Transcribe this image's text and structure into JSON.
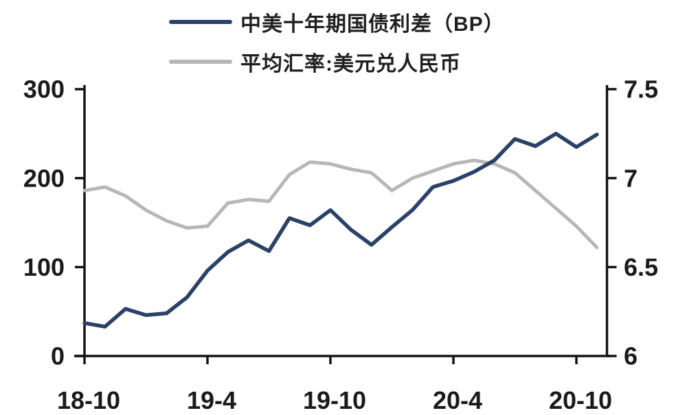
{
  "chart_data": {
    "type": "line",
    "title": "",
    "x_categories": [
      "18-10",
      "18-11",
      "18-12",
      "19-1",
      "19-2",
      "19-3",
      "19-4",
      "19-5",
      "19-6",
      "19-7",
      "19-8",
      "19-9",
      "19-10",
      "19-11",
      "19-12",
      "20-1",
      "20-2",
      "20-3",
      "20-4",
      "20-5",
      "20-6",
      "20-7",
      "20-8",
      "20-9",
      "20-10",
      "20-11"
    ],
    "x_tick_labels": [
      "18-10",
      "19-4",
      "19-10",
      "20-4",
      "20-10"
    ],
    "x_tick_indices": [
      0,
      6,
      12,
      18,
      24
    ],
    "series": [
      {
        "name": "中美十年期国债利差（BP）",
        "axis": "left",
        "color": "#2a4168",
        "values": [
          37,
          33,
          53,
          46,
          48,
          66,
          96,
          117,
          130,
          118,
          155,
          147,
          164,
          142,
          125,
          145,
          164,
          190,
          197,
          207,
          220,
          244,
          236,
          250,
          235,
          249
        ]
      },
      {
        "name": "平均汇率:美元兑人民币",
        "axis": "right",
        "color": "#b7b7b7",
        "values": [
          6.93,
          6.95,
          6.9,
          6.82,
          6.76,
          6.72,
          6.73,
          6.86,
          6.88,
          6.87,
          7.02,
          7.09,
          7.08,
          7.05,
          7.03,
          6.93,
          7.0,
          7.04,
          7.08,
          7.1,
          7.08,
          7.03,
          6.93,
          6.83,
          6.73,
          6.61
        ]
      }
    ],
    "left_axis": {
      "range": [
        0,
        300
      ],
      "ticks": [
        0,
        100,
        200,
        300
      ],
      "tick_labels": [
        "0",
        "100",
        "200",
        "300"
      ]
    },
    "right_axis": {
      "range": [
        6,
        7.5
      ],
      "ticks": [
        6,
        6.5,
        7,
        7.5
      ],
      "tick_labels": [
        "6",
        "6.5",
        "7",
        "7.5"
      ]
    },
    "grid": false,
    "legend_position": "top"
  },
  "colors": {
    "background": "#ffffff",
    "axis": "#141414",
    "tick_text": "#1a1a1a",
    "legend_text": "#1f1f1f"
  }
}
